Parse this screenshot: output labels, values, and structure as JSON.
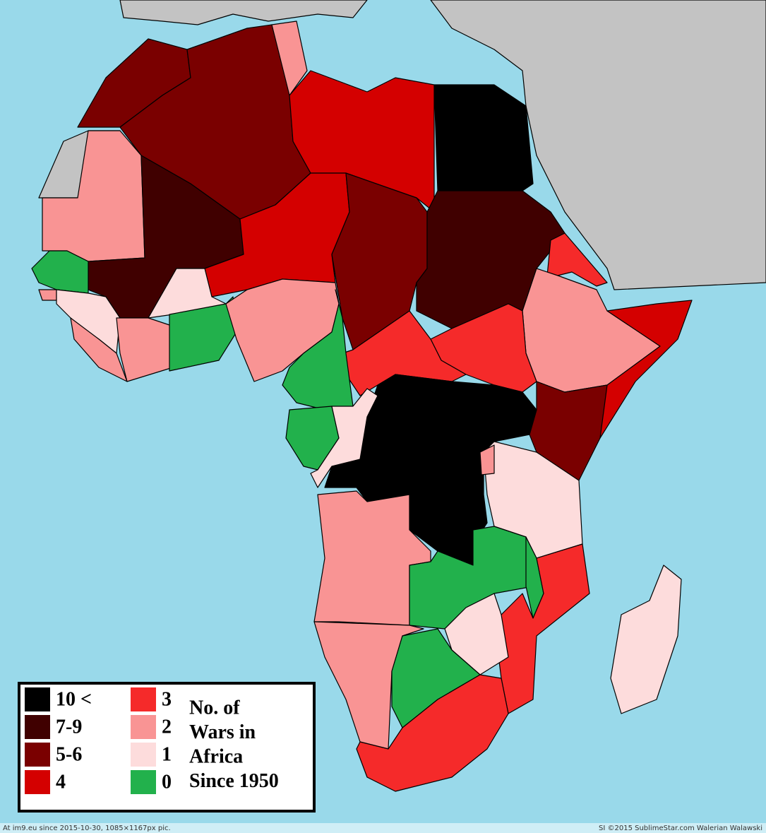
{
  "legend": {
    "items": [
      {
        "label": "10 <",
        "color": "#000000"
      },
      {
        "label": "7-9",
        "color": "#400000"
      },
      {
        "label": "5-6",
        "color": "#7a0000"
      },
      {
        "label": "4",
        "color": "#d40000"
      },
      {
        "label": "3",
        "color": "#f52a2a"
      },
      {
        "label": "2",
        "color": "#f99494"
      },
      {
        "label": "1",
        "color": "#fddcdc"
      },
      {
        "label": "0",
        "color": "#22b14c"
      }
    ],
    "title": [
      "No. of",
      "Wars in",
      "Africa",
      "Since 1950"
    ]
  },
  "footer": {
    "left": "At im9.eu since 2015-10-30, 1085×1167px pic.",
    "right": "SI ©2015 SublimeStar.com Walerian Walawski"
  }
}
